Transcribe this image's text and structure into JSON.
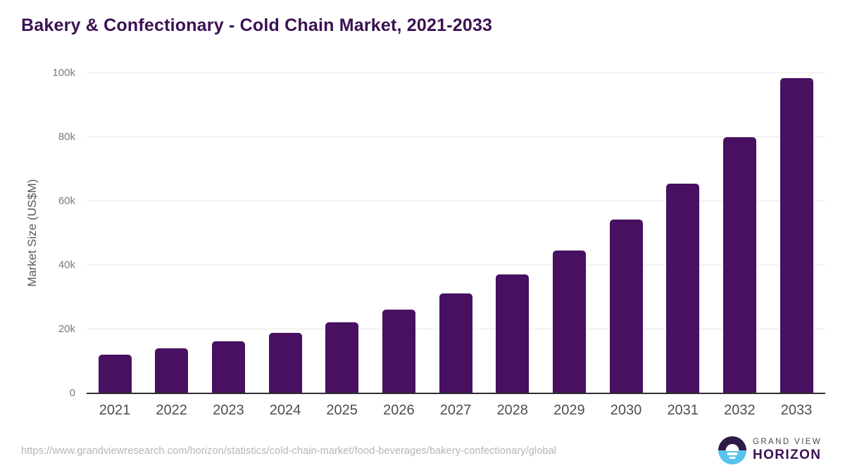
{
  "chart_data": {
    "type": "bar",
    "title": "Bakery & Confectionary - Cold Chain Market, 2021-2033",
    "categories": [
      "2021",
      "2022",
      "2023",
      "2024",
      "2025",
      "2026",
      "2027",
      "2028",
      "2029",
      "2030",
      "2031",
      "2032",
      "2033"
    ],
    "values": [
      12100,
      14100,
      16200,
      19000,
      22300,
      26200,
      31200,
      37100,
      44700,
      54300,
      65600,
      80100,
      98400
    ],
    "xlabel": "",
    "ylabel": "Market Size (US$M)",
    "ylim": [
      0,
      100000
    ],
    "yticks": [
      {
        "value": 0,
        "label": "0"
      },
      {
        "value": 20000,
        "label": "20k"
      },
      {
        "value": 40000,
        "label": "40k"
      },
      {
        "value": 60000,
        "label": "60k"
      },
      {
        "value": 80000,
        "label": "80k"
      },
      {
        "value": 100000,
        "label": "100k"
      }
    ],
    "grid": true,
    "legend": false,
    "bar_color": "#481060"
  },
  "footer": {
    "source_url": "https://www.grandviewresearch.com/horizon/statistics/cold-chain-market/food-beverages/bakery-confectionary/global",
    "logo": {
      "line1": "GRAND VIEW",
      "line2": "HORIZON"
    }
  },
  "colors": {
    "title": "#3b1152",
    "bar": "#481060",
    "axis_label": "#595959",
    "ytick_label": "#7a7a7a",
    "xtick_label": "#4d4d4d",
    "gridline": "#e8e8e8",
    "baseline": "#2e2e2e",
    "url_text": "#b5b5b5",
    "logo_dark": "#2e1b47",
    "logo_blue": "#57c4ef"
  }
}
